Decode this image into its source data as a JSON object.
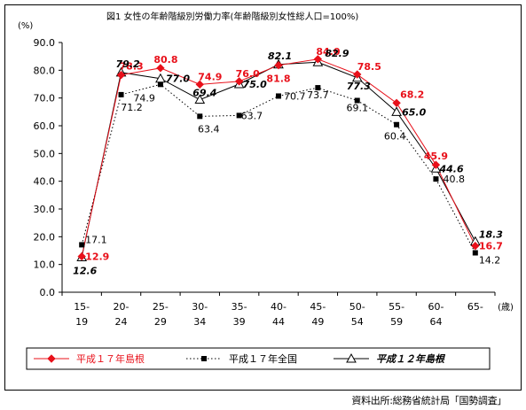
{
  "chart_data": {
    "type": "line",
    "title": "図1  女性の年齢階級別労働力率(年齢階級別女性総人口=100%)",
    "ylabel": "(%)",
    "x_unit": "(歳)",
    "ylim": [
      0,
      90
    ],
    "yticks": [
      "0.0",
      "10.0",
      "20.0",
      "30.0",
      "40.0",
      "50.0",
      "60.0",
      "70.0",
      "80.0",
      "90.0"
    ],
    "categories": [
      [
        "15-",
        "19"
      ],
      [
        "20-",
        "24"
      ],
      [
        "25-",
        "29"
      ],
      [
        "30-",
        "34"
      ],
      [
        "35-",
        "39"
      ],
      [
        "40-",
        "44"
      ],
      [
        "45-",
        "49"
      ],
      [
        "50-",
        "54"
      ],
      [
        "55-",
        "59"
      ],
      [
        "60-",
        "64"
      ],
      [
        "65-",
        ""
      ]
    ],
    "series": [
      {
        "name": "平成１７年島根",
        "values": [
          12.9,
          78.3,
          80.8,
          74.9,
          76.0,
          81.8,
          84.0,
          78.5,
          68.2,
          45.9,
          16.7
        ],
        "labels": [
          "12.9",
          "78.3",
          "80.8",
          "74.9",
          "76.0",
          "81.8",
          "84.0",
          "78.5",
          "68.2",
          "45.9",
          "16.7"
        ],
        "color": "#e8101a",
        "style": "solid",
        "marker": "diamond"
      },
      {
        "name": "平成１７年全国",
        "values": [
          17.1,
          71.2,
          74.9,
          63.4,
          63.7,
          70.7,
          73.7,
          69.1,
          60.4,
          40.8,
          14.2
        ],
        "labels": [
          "17.1",
          "71.2",
          "74.9",
          "63.4",
          "63.7",
          "70.7",
          "73.7",
          "69.1",
          "60.4",
          "40.8",
          "14.2"
        ],
        "color": "#000000",
        "style": "dotted",
        "marker": "square"
      },
      {
        "name": "平成１２年島根",
        "values": [
          12.6,
          79.2,
          77.0,
          69.4,
          75.0,
          82.1,
          82.9,
          77.3,
          65.0,
          44.6,
          18.3
        ],
        "labels": [
          "12.6",
          "79.2",
          "77.0",
          "69.4",
          "75.0",
          "82.1",
          "82.9",
          "77.3",
          "65.0",
          "44.6",
          "18.3"
        ],
        "color": "#000000",
        "style": "solid",
        "marker": "triangle"
      }
    ],
    "grid": false,
    "legend": "bottom"
  },
  "source": "資料出所:総務省統計局「国勢調査」"
}
